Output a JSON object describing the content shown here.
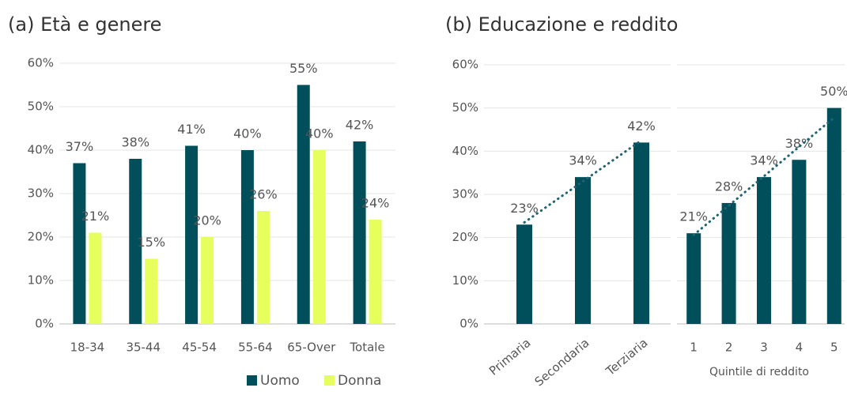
{
  "chart_data": [
    {
      "type": "bar",
      "title": "(a) Età e genere",
      "categories": [
        "18-34",
        "35-44",
        "45-54",
        "55-64",
        "65-Over",
        "Totale"
      ],
      "series": [
        {
          "name": "Uomo",
          "color": "#004f5a",
          "values": [
            37,
            38,
            41,
            40,
            55,
            42
          ],
          "value_labels": [
            "37%",
            "38%",
            "41%",
            "40%",
            "55%",
            "42%"
          ]
        },
        {
          "name": "Donna",
          "color": "#e6ff5c",
          "values": [
            21,
            15,
            20,
            26,
            40,
            24
          ],
          "value_labels": [
            "21%",
            "15%",
            "20%",
            "26%",
            "40%",
            "24%"
          ]
        }
      ],
      "ylim": [
        0,
        60
      ],
      "yticks": [
        {
          "value": 0,
          "label": "0%"
        },
        {
          "value": 10,
          "label": "10%"
        },
        {
          "value": 20,
          "label": "20%"
        },
        {
          "value": 30,
          "label": "30%"
        },
        {
          "value": 40,
          "label": "40%"
        },
        {
          "value": 50,
          "label": "50%"
        },
        {
          "value": 60,
          "label": "60%"
        }
      ],
      "grid": true,
      "legend": "bottom"
    },
    {
      "type": "bar",
      "title": "(b) Educazione e reddito",
      "categories": [
        "Primaria",
        "Secondaria",
        "Terziaria"
      ],
      "values": [
        23,
        34,
        42
      ],
      "value_labels": [
        "23%",
        "34%",
        "42%"
      ],
      "color": "#004f5a",
      "ylim": [
        0,
        60
      ],
      "yticks": [
        {
          "value": 0,
          "label": "0%"
        },
        {
          "value": 10,
          "label": "10%"
        },
        {
          "value": 20,
          "label": "20%"
        },
        {
          "value": 30,
          "label": "30%"
        },
        {
          "value": 40,
          "label": "40%"
        },
        {
          "value": 50,
          "label": "50%"
        },
        {
          "value": 60,
          "label": "60%"
        }
      ],
      "grid": true,
      "trendline": true
    },
    {
      "type": "bar",
      "xlabel": "Quintile di reddito",
      "categories": [
        "1",
        "2",
        "3",
        "4",
        "5"
      ],
      "values": [
        21,
        28,
        34,
        38,
        50
      ],
      "value_labels": [
        "21%",
        "28%",
        "34%",
        "38%",
        "50%"
      ],
      "color": "#004f5a",
      "ylim": [
        0,
        60
      ],
      "yticks": [
        0,
        10,
        20,
        30,
        40,
        50,
        60
      ],
      "grid": true,
      "trendline": true
    }
  ]
}
